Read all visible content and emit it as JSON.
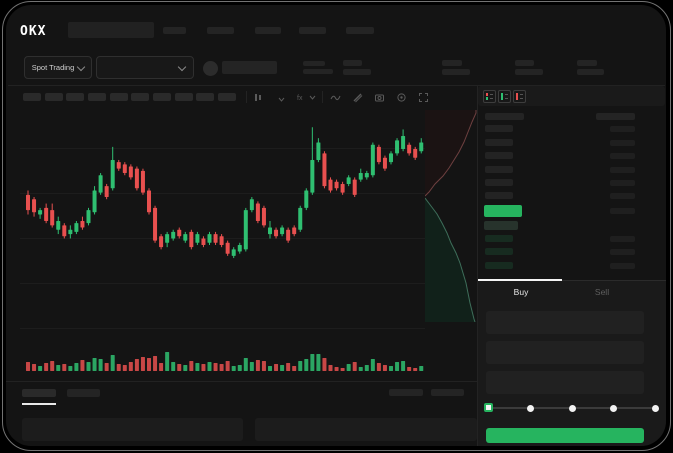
{
  "app": {
    "brand": "OKX"
  },
  "header": {
    "market_selector_label": "Spot Trading"
  },
  "trade_panel": {
    "buy_tab": "Buy",
    "sell_tab": "Sell",
    "slider": {
      "value_percent": 0,
      "stops": [
        0,
        25,
        50,
        75,
        100
      ]
    }
  },
  "colors": {
    "accent_green": "#26b45f",
    "candle_up": "#2fbf71",
    "candle_down": "#e8504f",
    "background": "#141414"
  },
  "chart_data": {
    "type": "candlestick",
    "title": "",
    "xlabel": "",
    "ylabel": "",
    "note": "No axis tick labels are visible in the UI; OHLC values are normalized 0-100 of plot height",
    "legend": "none",
    "grid": "faint-horizontal",
    "colors": {
      "up": "#2fbf71",
      "down": "#e8504f"
    },
    "candles": [
      [
        62,
        64,
        53,
        55
      ],
      [
        60,
        61,
        52,
        54
      ],
      [
        53,
        56,
        51,
        55
      ],
      [
        56,
        58,
        49,
        50
      ],
      [
        55,
        58,
        47,
        48
      ],
      [
        46,
        52,
        44,
        50
      ],
      [
        48,
        49,
        42,
        43
      ],
      [
        44,
        48,
        42,
        46
      ],
      [
        45,
        50,
        44,
        49
      ],
      [
        50,
        52,
        46,
        47
      ],
      [
        49,
        56,
        48,
        55
      ],
      [
        54,
        66,
        53,
        64
      ],
      [
        63,
        72,
        62,
        71
      ],
      [
        66,
        67,
        60,
        61
      ],
      [
        65,
        84,
        64,
        78
      ],
      [
        77,
        78,
        73,
        74
      ],
      [
        76,
        77,
        71,
        72
      ],
      [
        75,
        76,
        69,
        70
      ],
      [
        74,
        75,
        64,
        65
      ],
      [
        73,
        74,
        62,
        63
      ],
      [
        64,
        65,
        53,
        54
      ],
      [
        56,
        57,
        40,
        41
      ],
      [
        43,
        44,
        37,
        38
      ],
      [
        40,
        45,
        38,
        44
      ],
      [
        42,
        46,
        41,
        45
      ],
      [
        46,
        47,
        42,
        43
      ],
      [
        41,
        45,
        40,
        44
      ],
      [
        45,
        46,
        37,
        38
      ],
      [
        40,
        45,
        39,
        44
      ],
      [
        42,
        43,
        38,
        39
      ],
      [
        40,
        45,
        39,
        44
      ],
      [
        44,
        45,
        39,
        40
      ],
      [
        43,
        44,
        38,
        39
      ],
      [
        40,
        41,
        34,
        35
      ],
      [
        34,
        38,
        33,
        37
      ],
      [
        36,
        40,
        35,
        39
      ],
      [
        37,
        56,
        36,
        55
      ],
      [
        55,
        61,
        54,
        60
      ],
      [
        58,
        59,
        49,
        50
      ],
      [
        56,
        57,
        47,
        48
      ],
      [
        44,
        50,
        42,
        47
      ],
      [
        46,
        47,
        42,
        43
      ],
      [
        44,
        48,
        43,
        47
      ],
      [
        46,
        47,
        40,
        41
      ],
      [
        47,
        48,
        43,
        44
      ],
      [
        46,
        57,
        45,
        56
      ],
      [
        56,
        65,
        55,
        64
      ],
      [
        63,
        93,
        62,
        78
      ],
      [
        78,
        88,
        77,
        86
      ],
      [
        81,
        82,
        65,
        66
      ],
      [
        69,
        70,
        63,
        64
      ],
      [
        68,
        69,
        64,
        65
      ],
      [
        67,
        68,
        62,
        63
      ],
      [
        67,
        71,
        66,
        70
      ],
      [
        69,
        70,
        61,
        62
      ],
      [
        69,
        74,
        68,
        72
      ],
      [
        70,
        73,
        69,
        72
      ],
      [
        71,
        86,
        70,
        85
      ],
      [
        84,
        85,
        76,
        77
      ],
      [
        79,
        80,
        73,
        74
      ],
      [
        77,
        82,
        76,
        81
      ],
      [
        81,
        88,
        80,
        87
      ],
      [
        83,
        92,
        82,
        89
      ],
      [
        85,
        86,
        80,
        81
      ],
      [
        83,
        84,
        78,
        79
      ],
      [
        82,
        88,
        81,
        86
      ]
    ],
    "volumes": [
      9,
      7,
      5,
      8,
      10,
      6,
      7,
      5,
      8,
      11,
      9,
      13,
      12,
      8,
      16,
      7,
      6,
      9,
      12,
      14,
      13,
      15,
      8,
      19,
      9,
      7,
      6,
      10,
      8,
      7,
      9,
      8,
      7,
      10,
      5,
      6,
      13,
      9,
      11,
      10,
      5,
      7,
      6,
      8,
      5,
      10,
      12,
      17,
      17,
      13,
      6,
      4,
      3,
      7,
      9,
      4,
      6,
      12,
      8,
      6,
      5,
      9,
      10,
      4,
      3,
      5
    ],
    "depth": {
      "asks_line": [
        [
          51,
          0
        ],
        [
          51,
          3
        ],
        [
          47,
          12
        ],
        [
          43,
          22
        ],
        [
          39,
          32
        ],
        [
          34,
          42
        ],
        [
          29,
          50
        ],
        [
          24,
          58
        ],
        [
          18,
          66
        ],
        [
          10,
          74
        ],
        [
          4,
          82
        ],
        [
          0,
          86
        ]
      ],
      "bids_line": [
        [
          0,
          88
        ],
        [
          6,
          96
        ],
        [
          12,
          104
        ],
        [
          17,
          113
        ],
        [
          22,
          123
        ],
        [
          26,
          133
        ],
        [
          31,
          143
        ],
        [
          35,
          153
        ],
        [
          38,
          163
        ],
        [
          41,
          173
        ],
        [
          43,
          183
        ],
        [
          45,
          193
        ],
        [
          47,
          201
        ],
        [
          49,
          209
        ],
        [
          50,
          212
        ]
      ],
      "ask_stroke": "#6e4040",
      "ask_fill": "#1b1313",
      "bid_stroke": "#3e6e5a",
      "bid_fill": "#11211a"
    }
  }
}
